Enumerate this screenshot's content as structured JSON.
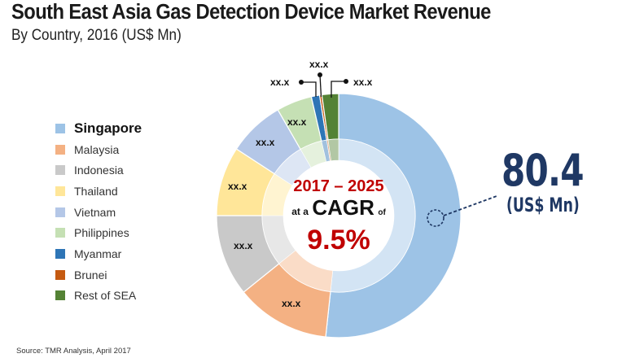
{
  "header": {
    "title": "South East Asia Gas Detection Device Market Revenue",
    "subtitle": "By Country, 2016 (US$ Mn)"
  },
  "legend": {
    "items": [
      {
        "label": "Singapore",
        "color": "#9dc3e6"
      },
      {
        "label": "Malaysia",
        "color": "#f4b183"
      },
      {
        "label": "Indonesia",
        "color": "#c9c9c9"
      },
      {
        "label": "Thailand",
        "color": "#ffe699"
      },
      {
        "label": "Vietnam",
        "color": "#b4c7e7"
      },
      {
        "label": "Philippines",
        "color": "#c5e0b4"
      },
      {
        "label": "Myanmar",
        "color": "#2e75b6"
      },
      {
        "label": "Brunei",
        "color": "#c55a11"
      },
      {
        "label": "Rest of SEA",
        "color": "#548235"
      }
    ]
  },
  "center": {
    "years": "2017 – 2025",
    "at_a": "at a",
    "cagr": "CAGR",
    "of": "of",
    "value": "9.5%"
  },
  "highlight": {
    "value": "80.4",
    "unit": "(US$ Mn)",
    "color": "#1f3864"
  },
  "slice_labels": {
    "malaysia": "xx.x",
    "indonesia": "xx.x",
    "thailand": "xx.x",
    "vietnam": "xx.x",
    "philippines": "xx.x",
    "myanmar": "xx.x",
    "brunei": "xx.x",
    "rest_of_sea": "xx.x"
  },
  "source": "Source: TMR Analysis, April 2017",
  "chart_data": {
    "type": "pie",
    "variant": "donut",
    "title": "South East Asia Gas Detection Device Market Revenue",
    "subtitle": "By Country, 2016 (US$ Mn)",
    "categories": [
      "Singapore",
      "Malaysia",
      "Indonesia",
      "Thailand",
      "Vietnam",
      "Philippines",
      "Myanmar",
      "Brunei",
      "Rest of SEA"
    ],
    "colors": [
      "#9dc3e6",
      "#f4b183",
      "#c9c9c9",
      "#ffe699",
      "#b4c7e7",
      "#c5e0b4",
      "#2e75b6",
      "#c55a11",
      "#548235"
    ],
    "share_percent_estimated": [
      51.7,
      12.5,
      10.8,
      9.2,
      7.5,
      4.7,
      1.1,
      0.3,
      2.2
    ],
    "data_labels": [
      "80.4",
      "xx.x",
      "xx.x",
      "xx.x",
      "xx.x",
      "xx.x",
      "xx.x",
      "xx.x",
      "xx.x"
    ],
    "highlighted": {
      "category": "Singapore",
      "value": 80.4,
      "unit": "US$ Mn"
    },
    "annotation": "2017 – 2025 at a CAGR of 9.5%",
    "legend_position": "left",
    "source": "Source: TMR Analysis, April 2017"
  }
}
